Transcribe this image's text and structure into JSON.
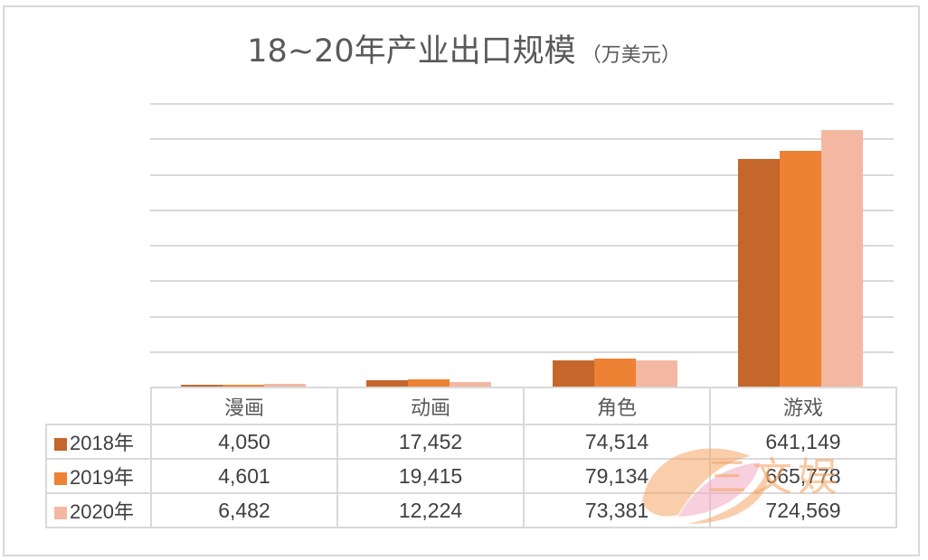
{
  "chart_data": {
    "type": "bar",
    "title": "18~20年产业出口规模",
    "subtitle": "（万美元）",
    "xlabel": "",
    "ylabel": "",
    "ylim": [
      0,
      800000
    ],
    "grid": true,
    "gridline_step": 100000,
    "legend_position": "data-table-left",
    "categories": [
      "漫画",
      "动画",
      "角色",
      "游戏"
    ],
    "series": [
      {
        "name": "2018年",
        "color": "#C5662A",
        "values": [
          4050,
          17452,
          74514,
          641149
        ]
      },
      {
        "name": "2019年",
        "color": "#ED8134",
        "values": [
          4601,
          19415,
          79134,
          665778
        ]
      },
      {
        "name": "2020年",
        "color": "#F4B8A2",
        "values": [
          6482,
          12224,
          73381,
          724569
        ]
      }
    ]
  },
  "title": {
    "main": "18~20年产业出口规模",
    "unit": "（万美元）"
  },
  "table": {
    "headers": [
      "漫画",
      "动画",
      "角色",
      "游戏"
    ],
    "rows": [
      {
        "label": "2018年",
        "color": "#C5662A",
        "cells": [
          "4,050",
          "17,452",
          "74,514",
          "641,149"
        ]
      },
      {
        "label": "2019年",
        "color": "#ED8134",
        "cells": [
          "4,601",
          "19,415",
          "79,134",
          "665,778"
        ]
      },
      {
        "label": "2020年",
        "color": "#F4B8A2",
        "cells": [
          "6,482",
          "12,224",
          "73,381",
          "724,569"
        ]
      }
    ]
  },
  "watermark": {
    "text": "三文娱"
  }
}
